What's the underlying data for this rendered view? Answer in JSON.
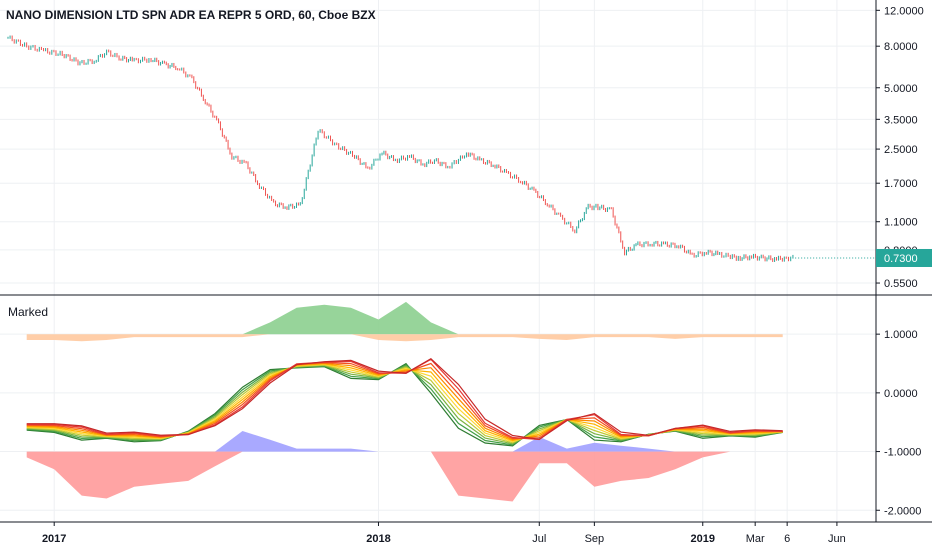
{
  "header": {
    "title": "NANO DIMENSION LTD SPN ADR EA REPR 5 ORD, 60, Cboe BZX"
  },
  "lower_pane": {
    "label": "Marked"
  },
  "colors": {
    "background": "#ffffff",
    "grid": "#eef0f3",
    "axis_line": "#131722",
    "up": "#26a69a",
    "down": "#ef5350",
    "last_price_badge": "#26a69a",
    "pos_fill_green": "#8ccf8f",
    "neg_fill_orange": "#ffc99e",
    "below_fill_blue": "#a0a0ff",
    "below_fill_red": "#ff9a9a",
    "ribbon": [
      "#2e7d32",
      "#43a047",
      "#7cb342",
      "#c0ca33",
      "#fdd835",
      "#ffb300",
      "#fb8c00",
      "#f4511e",
      "#e53935",
      "#c62828"
    ]
  },
  "chart_data": [
    {
      "type": "line",
      "name": "price-pane",
      "y_scale": "log",
      "y_ticks": [
        "12.0000",
        "8.0000",
        "5.0000",
        "3.5000",
        "2.5000",
        "1.7000",
        "1.1000",
        "0.8000",
        "0.5500"
      ],
      "y_tick_values": [
        12.0,
        8.0,
        5.0,
        3.5,
        2.5,
        1.7,
        1.1,
        0.8,
        0.55
      ],
      "ylim": [
        0.52,
        12.6
      ],
      "last_price": "0.7300",
      "last_price_value": 0.73,
      "x": [
        "2016-11-10",
        "2016-12-01",
        "2016-12-20",
        "2017-01-10",
        "2017-01-30",
        "2017-02-15",
        "2017-03-01",
        "2017-03-15",
        "2017-04-01",
        "2017-04-20",
        "2017-05-05",
        "2017-05-20",
        "2017-06-05",
        "2017-06-20",
        "2017-07-05",
        "2017-07-20",
        "2017-08-05",
        "2017-08-20",
        "2017-09-05",
        "2017-09-20",
        "2017-10-05",
        "2017-10-25",
        "2017-11-15",
        "2017-12-05",
        "2017-12-20",
        "2018-01-05",
        "2018-01-20",
        "2018-02-05",
        "2018-02-20",
        "2018-03-05",
        "2018-03-20",
        "2018-04-01",
        "2018-04-10",
        "2018-04-25",
        "2018-05-10",
        "2018-05-25",
        "2018-06-10",
        "2018-06-25",
        "2018-07-10",
        "2018-07-25",
        "2018-08-10",
        "2018-08-25",
        "2018-09-05",
        "2018-09-20",
        "2018-10-05",
        "2018-10-20",
        "2018-11-05",
        "2018-11-20",
        "2018-12-05",
        "2018-12-20",
        "2019-01-05",
        "2019-01-20",
        "2019-02-01",
        "2019-02-10",
        "2019-02-25",
        "2019-03-10",
        "2019-03-25",
        "2019-04-05",
        "2019-04-15"
      ],
      "values": [
        8.8,
        8.0,
        7.6,
        7.3,
        6.6,
        6.8,
        7.5,
        7.0,
        6.8,
        6.9,
        6.5,
        6.3,
        5.5,
        4.3,
        3.3,
        2.3,
        2.1,
        1.65,
        1.35,
        1.3,
        1.33,
        3.1,
        2.6,
        2.3,
        2.0,
        2.4,
        2.2,
        2.3,
        2.1,
        2.2,
        2.05,
        2.2,
        2.4,
        2.2,
        2.1,
        1.9,
        1.75,
        1.55,
        1.35,
        1.15,
        1.0,
        1.3,
        1.3,
        1.25,
        0.78,
        0.85,
        0.86,
        0.85,
        0.84,
        0.75,
        0.78,
        0.76,
        0.74,
        0.73,
        0.74,
        0.73,
        0.72,
        0.73,
        0.73
      ]
    },
    {
      "type": "area",
      "name": "indicator-pane",
      "y_ticks": [
        "1.0000",
        "0.0000",
        "-1.0000",
        "-2.0000"
      ],
      "y_tick_values": [
        1.0,
        0.0,
        -1.0,
        -2.0
      ],
      "ylim": [
        -2.2,
        1.65
      ],
      "x": [
        "2016-12-01",
        "2017-01-01",
        "2017-02-01",
        "2017-03-01",
        "2017-04-01",
        "2017-05-01",
        "2017-06-01",
        "2017-07-01",
        "2017-08-01",
        "2017-09-01",
        "2017-10-01",
        "2017-11-01",
        "2017-12-01",
        "2018-01-01",
        "2018-02-01",
        "2018-03-01",
        "2018-04-01",
        "2018-05-01",
        "2018-06-01",
        "2018-07-01",
        "2018-08-01",
        "2018-09-01",
        "2018-10-01",
        "2018-11-01",
        "2018-12-01",
        "2019-01-01",
        "2019-02-01",
        "2019-03-01",
        "2019-04-01"
      ],
      "series": [
        {
          "values": [
            -0.58,
            -0.62,
            -0.75,
            -0.72,
            -0.78,
            -0.76,
            -0.6,
            -0.3,
            0.15,
            0.45,
            0.48,
            0.5,
            0.3,
            0.28,
            0.55,
            0.05,
            -0.55,
            -0.8,
            -0.85,
            -0.5,
            -0.4,
            -0.75,
            -0.78,
            -0.65,
            -0.6,
            -0.72,
            -0.68,
            -0.7,
            -0.62
          ]
        },
        {
          "values": [
            0.0,
            0.0,
            0.0,
            0.0,
            0.0,
            0.0,
            0.0,
            0.0,
            0.0,
            0.0,
            0.0,
            0.0,
            0.0,
            0.0,
            0.0,
            0.0,
            0.0,
            0.0,
            0.0,
            0.0,
            0.0,
            0.0,
            0.0,
            0.0,
            0.0,
            0.0,
            0.0,
            0.0,
            0.0
          ]
        }
      ],
      "fills": {
        "top_positive": [
          0,
          0,
          0,
          0,
          0,
          0,
          0,
          0,
          0,
          0.2,
          0.45,
          0.5,
          0.45,
          0.25,
          0.55,
          0.2,
          0,
          0,
          0,
          0,
          0,
          0,
          0,
          0,
          0,
          0,
          0,
          0,
          0
        ],
        "top_negative": [
          0.1,
          0.1,
          0.12,
          0.1,
          0.05,
          0.05,
          0.05,
          0.05,
          0.05,
          0,
          0,
          0,
          0,
          0.1,
          0.12,
          0.1,
          0.05,
          0.05,
          0.05,
          0.08,
          0.1,
          0.05,
          0.05,
          0.05,
          0.08,
          0.05,
          0.05,
          0.05,
          0.05
        ],
        "bottom_up": [
          0,
          0,
          0,
          0,
          0,
          0,
          0,
          0,
          0.35,
          0.2,
          0.05,
          0.05,
          0.05,
          0,
          0,
          0,
          0,
          0,
          0,
          0.25,
          0.05,
          0.15,
          0.1,
          0.05,
          0,
          0,
          0,
          0,
          0
        ],
        "bottom_down": [
          0.1,
          0.3,
          0.75,
          0.8,
          0.6,
          0.55,
          0.5,
          0.25,
          0,
          0,
          0,
          0,
          0,
          0,
          0,
          0,
          0.75,
          0.8,
          0.85,
          0.2,
          0.2,
          0.6,
          0.5,
          0.45,
          0.3,
          0.1,
          0,
          0,
          0
        ]
      }
    }
  ],
  "x_axis": {
    "labels": [
      "2017",
      "2018",
      "Jul",
      "Sep",
      "2019",
      "Mar",
      "6",
      "Jun"
    ],
    "dates": [
      "2017-01-01",
      "2018-01-01",
      "2018-07-01",
      "2018-09-01",
      "2019-01-01",
      "2019-03-01",
      "2019-04-06",
      "2019-06-01"
    ],
    "bold": [
      true,
      true,
      false,
      false,
      true,
      false,
      false,
      false
    ],
    "xlim": [
      "2016-11-01",
      "2019-07-15"
    ]
  }
}
